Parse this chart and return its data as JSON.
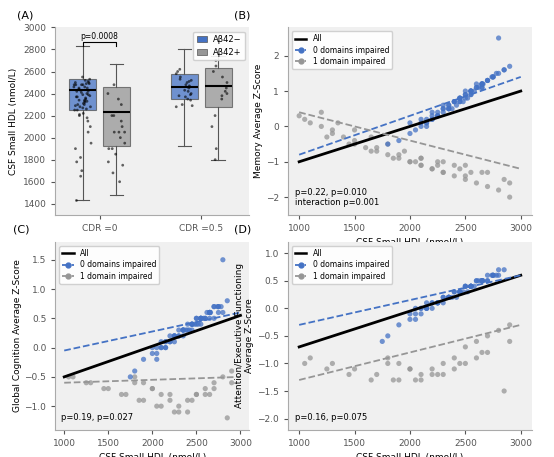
{
  "blue_color": "#4472C4",
  "gray_color": "#969696",
  "plot_bg": "#f0f0f0",
  "boxplot_A": {
    "CDR0_blue": {
      "q1": 2250,
      "median": 2430,
      "q3": 2530,
      "whisker_low": 1430,
      "whisker_high": 2830,
      "data": [
        2450,
        2480,
        2320,
        2400,
        2550,
        2300,
        2250,
        2180,
        2420,
        2500,
        2350,
        2280,
        2460,
        2390,
        2510,
        2330,
        2260,
        2440,
        2380,
        2490,
        2220,
        2370,
        2430,
        2360,
        2480,
        2410,
        2340,
        2270,
        2520,
        2300,
        2150,
        2480,
        2530,
        2200,
        2290,
        2340,
        2480,
        2390,
        2250,
        2460,
        2310,
        2420,
        2370,
        2500,
        2280,
        2330,
        2450,
        2490,
        2210,
        1780,
        1650,
        1900,
        2050,
        1430,
        1820,
        2100,
        1950,
        1700
      ]
    },
    "CDR0_gray": {
      "q1": 1920,
      "median": 2230,
      "q3": 2460,
      "whisker_low": 1480,
      "whisker_high": 2670,
      "data": [
        2300,
        2200,
        2100,
        2050,
        1950,
        1850,
        2350,
        2150,
        2050,
        2000,
        1780,
        1680,
        1900,
        1750,
        2050,
        1600,
        1900,
        2200,
        2400,
        2480
      ]
    },
    "CDR05_blue": {
      "q1": 2350,
      "median": 2460,
      "q3": 2580,
      "whisker_low": 1920,
      "whisker_high": 2800,
      "data": [
        2480,
        2520,
        2400,
        2460,
        2580,
        2350,
        2300,
        2430,
        2500,
        2380,
        2550,
        2420,
        2470,
        2390,
        2510,
        2280,
        2600,
        2450,
        2620,
        2530,
        2340,
        2290,
        2370
      ]
    },
    "CDR05_gray": {
      "q1": 2280,
      "median": 2470,
      "q3": 2630,
      "whisker_low": 1800,
      "whisker_high": 2740,
      "data": [
        2450,
        2350,
        2500,
        2600,
        2700,
        2550,
        2400,
        2200,
        2100,
        1900,
        1800,
        2650,
        2380,
        2420
      ]
    }
  },
  "scatter_B": {
    "blue_x": [
      1800,
      1900,
      2000,
      2050,
      2100,
      2150,
      2200,
      2250,
      2300,
      2350,
      2400,
      2450,
      2500,
      2550,
      2600,
      2650,
      2700,
      2750,
      2800,
      2850,
      2900,
      2000,
      2100,
      2200,
      2300,
      2400,
      2500,
      2600,
      2150,
      2250,
      2350,
      2450,
      2550,
      2650,
      2250,
      2350,
      2450,
      2550,
      2650,
      2750,
      2100,
      2200,
      2300,
      2400,
      2500,
      2550,
      2600,
      2650,
      2700,
      2800,
      2450,
      2550,
      2350,
      2250,
      2150,
      2650,
      2750,
      2850,
      2150,
      2350,
      2550,
      2450,
      2300,
      2200,
      2650,
      2500,
      2380,
      2420,
      2480,
      2520,
      2580,
      2620,
      2660,
      2700,
      2740,
      2780
    ],
    "blue_y": [
      -0.5,
      -0.4,
      -0.2,
      -0.1,
      0.0,
      0.1,
      0.2,
      0.3,
      0.5,
      0.6,
      0.7,
      0.8,
      0.9,
      1.0,
      1.1,
      1.2,
      1.3,
      1.4,
      1.5,
      1.6,
      1.7,
      0.1,
      0.2,
      0.4,
      0.6,
      0.7,
      1.0,
      1.2,
      0.0,
      0.3,
      0.5,
      0.7,
      0.9,
      1.1,
      0.3,
      0.5,
      0.8,
      1.0,
      1.2,
      1.4,
      0.1,
      0.3,
      0.5,
      0.7,
      0.9,
      1.0,
      1.1,
      1.2,
      1.3,
      2.5,
      0.8,
      1.0,
      0.6,
      0.4,
      0.2,
      1.2,
      1.4,
      1.6,
      0.1,
      0.5,
      0.9,
      0.7,
      0.4,
      0.2,
      1.1,
      0.8,
      0.5,
      0.6,
      0.7,
      0.8,
      1.0,
      1.1,
      1.2,
      1.3,
      1.4,
      1.5
    ],
    "gray_x": [
      1000,
      1050,
      1100,
      1200,
      1300,
      1400,
      1500,
      1600,
      1700,
      1800,
      1900,
      2000,
      2100,
      2200,
      2300,
      2400,
      2500,
      2600,
      2700,
      2800,
      2900,
      1200,
      1350,
      1500,
      1650,
      1800,
      1950,
      2100,
      2250,
      2400,
      2550,
      1300,
      1500,
      1700,
      1900,
      2100,
      2300,
      2500,
      2700,
      2900,
      1250,
      1450,
      1650,
      1850,
      2050,
      2250,
      2450,
      2650,
      2850,
      2000,
      2100,
      2200,
      2300,
      2500
    ],
    "gray_y": [
      0.3,
      0.2,
      0.1,
      0.0,
      -0.1,
      -0.3,
      -0.5,
      -0.6,
      -0.7,
      -0.8,
      -0.9,
      -1.0,
      -1.1,
      -1.2,
      -1.3,
      -1.4,
      -1.5,
      -1.6,
      -1.7,
      -1.8,
      -2.0,
      0.4,
      0.1,
      -0.1,
      -0.3,
      -0.5,
      -0.7,
      -0.9,
      -1.0,
      -1.1,
      -1.3,
      -0.2,
      -0.4,
      -0.6,
      -0.8,
      -0.9,
      -1.0,
      -1.1,
      -1.3,
      -1.6,
      -0.3,
      -0.5,
      -0.7,
      -0.9,
      -1.0,
      -1.1,
      -1.2,
      -1.3,
      -1.5,
      -1.0,
      -1.1,
      -1.2,
      -1.3,
      -1.4
    ],
    "all_line_x": [
      1000,
      3000
    ],
    "all_line_y": [
      -1.0,
      1.0
    ],
    "blue_line_x": [
      1000,
      3000
    ],
    "blue_line_y": [
      -0.8,
      1.4
    ],
    "gray_line_x": [
      1000,
      3000
    ],
    "gray_line_y": [
      0.4,
      -1.2
    ],
    "annotation": "p=0.22, p=0.010\ninteraction p=0.001",
    "ylabel": "Memory Average Z-Score",
    "ylim": [
      -2.5,
      2.8
    ]
  },
  "scatter_C": {
    "blue_x": [
      1800,
      1900,
      2000,
      2100,
      2200,
      2300,
      2400,
      2500,
      2600,
      2700,
      2800,
      1750,
      2050,
      2150,
      2250,
      2350,
      2450,
      2550,
      2650,
      2750,
      2050,
      2150,
      2250,
      2350,
      2450,
      2550,
      2650,
      2250,
      2350,
      2450,
      2550,
      2650,
      2750,
      2000,
      2100,
      2200,
      2300,
      2400,
      2500,
      2550,
      2600,
      2650,
      2700,
      2800,
      2450,
      2550,
      2350,
      2250,
      2150,
      2050,
      2650,
      2750,
      2850,
      2150,
      2350,
      2550,
      2450,
      2300,
      2200,
      2100,
      2650,
      2500,
      2380,
      2420,
      2480,
      2520,
      2580,
      2620,
      2660,
      2700,
      2740,
      2780
    ],
    "blue_y": [
      -0.4,
      -0.2,
      -0.1,
      0.0,
      0.1,
      0.2,
      0.3,
      0.4,
      0.5,
      0.5,
      0.6,
      -0.5,
      -0.1,
      0.0,
      0.1,
      0.2,
      0.3,
      0.4,
      0.5,
      0.6,
      -0.2,
      0.0,
      0.2,
      0.3,
      0.4,
      0.5,
      0.6,
      0.2,
      0.3,
      0.4,
      0.5,
      0.6,
      0.7,
      0.0,
      0.1,
      0.2,
      0.3,
      0.4,
      0.5,
      0.5,
      0.5,
      0.6,
      0.7,
      1.5,
      0.4,
      0.5,
      0.3,
      0.2,
      0.1,
      0.0,
      0.6,
      0.7,
      0.8,
      0.1,
      0.3,
      0.5,
      0.4,
      0.2,
      0.1,
      0.0,
      0.6,
      0.5,
      0.3,
      0.3,
      0.4,
      0.4,
      0.5,
      0.6,
      0.6,
      0.7,
      0.7,
      0.7
    ],
    "gray_x": [
      1800,
      1900,
      2000,
      2100,
      2200,
      2300,
      2400,
      2500,
      2600,
      2700,
      2800,
      2900,
      1100,
      1300,
      1500,
      1700,
      1900,
      2100,
      2300,
      2500,
      2700,
      2900,
      1050,
      1250,
      1450,
      1650,
      1850,
      2050,
      2250,
      2450,
      2650,
      2850,
      1800,
      2000,
      2200,
      2400,
      2600
    ],
    "gray_y": [
      -0.5,
      -0.6,
      -0.7,
      -0.8,
      -0.9,
      -1.0,
      -1.1,
      -0.8,
      -0.7,
      -0.6,
      -0.5,
      -0.4,
      -0.5,
      -0.6,
      -0.7,
      -0.8,
      -0.9,
      -1.0,
      -1.1,
      -0.8,
      -0.7,
      -0.6,
      -0.5,
      -0.6,
      -0.7,
      -0.8,
      -0.9,
      -1.0,
      -1.1,
      -0.9,
      -0.8,
      -1.2,
      -0.6,
      -0.7,
      -0.8,
      -0.9,
      -0.8
    ],
    "all_line_x": [
      1000,
      3000
    ],
    "all_line_y": [
      -0.5,
      0.55
    ],
    "blue_line_x": [
      1000,
      3000
    ],
    "blue_line_y": [
      -0.05,
      0.6
    ],
    "gray_line_x": [
      1000,
      3000
    ],
    "gray_line_y": [
      -0.6,
      -0.5
    ],
    "annotation": "p=0.19, p=0.027",
    "ylabel": "Global Cognition Average Z-Score",
    "ylim": [
      -1.4,
      1.8
    ]
  },
  "scatter_D": {
    "blue_x": [
      1800,
      1900,
      2000,
      2100,
      2200,
      2300,
      2400,
      2500,
      2600,
      2700,
      2800,
      1750,
      2050,
      2150,
      2250,
      2350,
      2450,
      2550,
      2650,
      2750,
      2050,
      2150,
      2250,
      2350,
      2450,
      2550,
      2650,
      2250,
      2350,
      2450,
      2550,
      2650,
      2750,
      2000,
      2100,
      2200,
      2300,
      2400,
      2500,
      2550,
      2600,
      2650,
      2700,
      2800,
      2450,
      2550,
      2350,
      2250,
      2150,
      2050,
      2650,
      2750,
      2850,
      2150,
      2350,
      2550,
      2450,
      2300,
      2200,
      2100,
      2650,
      2500,
      2380,
      2420,
      2480,
      2520,
      2580,
      2620,
      2660,
      2700,
      2740,
      2780
    ],
    "blue_y": [
      -0.5,
      -0.3,
      -0.2,
      0.0,
      0.1,
      0.2,
      0.3,
      0.4,
      0.5,
      0.5,
      0.6,
      -0.6,
      0.0,
      0.1,
      0.1,
      0.2,
      0.3,
      0.4,
      0.5,
      0.6,
      -0.2,
      0.0,
      0.1,
      0.2,
      0.3,
      0.4,
      0.5,
      0.1,
      0.2,
      0.3,
      0.4,
      0.5,
      0.6,
      -0.1,
      0.0,
      0.1,
      0.2,
      0.3,
      0.4,
      0.4,
      0.5,
      0.5,
      0.6,
      0.7,
      0.3,
      0.4,
      0.2,
      0.1,
      0.0,
      -0.1,
      0.5,
      0.6,
      0.7,
      0.0,
      0.2,
      0.4,
      0.3,
      0.1,
      0.0,
      -0.1,
      0.5,
      0.4,
      0.2,
      0.2,
      0.3,
      0.3,
      0.4,
      0.5,
      0.5,
      0.5,
      0.6,
      0.6
    ],
    "gray_x": [
      1800,
      1900,
      2000,
      2100,
      2200,
      2300,
      2400,
      2500,
      2600,
      2700,
      2800,
      2900,
      1100,
      1300,
      1500,
      1700,
      1900,
      2100,
      2300,
      2500,
      2700,
      2900,
      1050,
      1250,
      1450,
      1650,
      1850,
      2050,
      2250,
      2450,
      2650,
      2850,
      1800,
      2000,
      2200,
      2400,
      2600
    ],
    "gray_y": [
      -0.9,
      -1.0,
      -1.1,
      -1.2,
      -1.1,
      -1.0,
      -0.9,
      -0.7,
      -0.6,
      -0.5,
      -0.4,
      -0.3,
      -0.9,
      -1.0,
      -1.1,
      -1.2,
      -1.3,
      -1.3,
      -1.2,
      -1.0,
      -0.8,
      -0.6,
      -1.0,
      -1.1,
      -1.2,
      -1.3,
      -1.3,
      -1.3,
      -1.2,
      -1.0,
      -0.8,
      -1.5,
      -1.0,
      -1.1,
      -1.2,
      -1.1,
      -0.9
    ],
    "all_line_x": [
      1000,
      3000
    ],
    "all_line_y": [
      -0.7,
      0.6
    ],
    "blue_line_x": [
      1000,
      3000
    ],
    "blue_line_y": [
      -0.3,
      0.6
    ],
    "gray_line_x": [
      1000,
      3000
    ],
    "gray_line_y": [
      -1.3,
      -0.3
    ],
    "annotation": "p=0.16, p=0.075",
    "ylabel": "Attention/Executive Functioning\nAverage Z-Score",
    "ylim": [
      -2.2,
      1.2
    ]
  },
  "xlabel": "CSF Small HDL (nmol/L)",
  "xlim": [
    900,
    3100
  ],
  "xticks": [
    1000,
    1500,
    2000,
    2500,
    3000
  ]
}
